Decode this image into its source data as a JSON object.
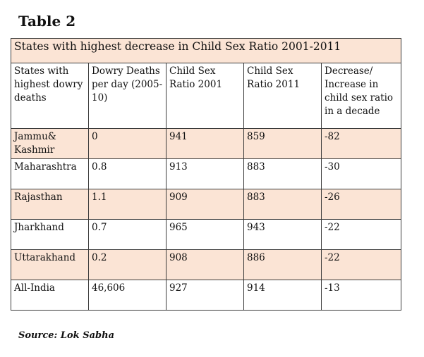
{
  "table_label": "Table 2",
  "title": "States with highest decrease in Child Sex Ratio 2001-2011",
  "columns": [
    "States with highest dowry deaths",
    "Dowry Deaths per day (2005-10)",
    "Child Sex Ratio 2001",
    "Child Sex Ratio 2011",
    "Decrease/ Increase in child sex ratio in a decade"
  ],
  "rows": [
    [
      "Jammu& Kashmir",
      "0",
      "941",
      "859",
      "-82"
    ],
    [
      "Maharashtra",
      "0.8",
      "913",
      "883",
      "-30"
    ],
    [
      "Rajasthan",
      "1.1",
      "909",
      "883",
      "-26"
    ],
    [
      "Jharkhand",
      "0.7",
      "965",
      "943",
      "-22"
    ],
    [
      "Uttarakhand",
      "0.2",
      "908",
      "886",
      "-22"
    ],
    [
      "All-India",
      "46,606",
      "927",
      "914",
      "-13"
    ]
  ],
  "source": "Source: Lok Sabha",
  "colors": {
    "tint": "#fbe4d5",
    "border": "#3a3a3a"
  }
}
